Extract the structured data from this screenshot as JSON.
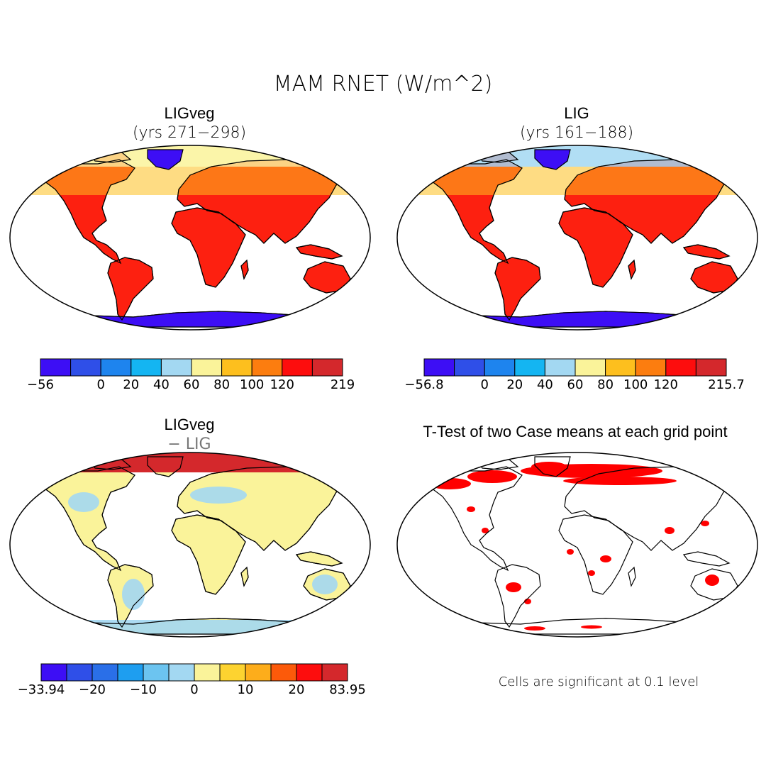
{
  "title": "MAM RNET (W/m^2)",
  "chart_data": [
    {
      "type": "heatmap",
      "title": "LIGveg",
      "subtitle": "(yrs 271−298)",
      "colorbar": {
        "colors": [
          "#3d0ef5",
          "#2f4fe8",
          "#1e84ee",
          "#14b5f2",
          "#a3d8f2",
          "#faf39a",
          "#fdbf1e",
          "#fc7d0f",
          "#fd0d0d",
          "#d4282c"
        ],
        "tick_labels": [
          {
            "label": "−56",
            "boundary": 0
          },
          {
            "label": "0",
            "boundary": 2
          },
          {
            "label": "20",
            "boundary": 3
          },
          {
            "label": "40",
            "boundary": 4
          },
          {
            "label": "60",
            "boundary": 5
          },
          {
            "label": "80",
            "boundary": 6
          },
          {
            "label": "100",
            "boundary": 7
          },
          {
            "label": "120",
            "boundary": 8
          },
          {
            "label": "219",
            "boundary": 10
          }
        ],
        "range": [
          -56,
          219
        ]
      }
    },
    {
      "type": "heatmap",
      "title": "LIG",
      "subtitle": "(yrs 161−188)",
      "colorbar": {
        "colors": [
          "#3d0ef5",
          "#2f4fe8",
          "#1e84ee",
          "#14b5f2",
          "#a3d8f2",
          "#faf39a",
          "#fdbf1e",
          "#fc7d0f",
          "#fd0d0d",
          "#d4282c"
        ],
        "tick_labels": [
          {
            "label": "−56.8",
            "boundary": 0
          },
          {
            "label": "0",
            "boundary": 2
          },
          {
            "label": "20",
            "boundary": 3
          },
          {
            "label": "40",
            "boundary": 4
          },
          {
            "label": "60",
            "boundary": 5
          },
          {
            "label": "80",
            "boundary": 6
          },
          {
            "label": "100",
            "boundary": 7
          },
          {
            "label": "120",
            "boundary": 8
          },
          {
            "label": "215.7",
            "boundary": 10
          }
        ],
        "range": [
          -56.8,
          215.7
        ]
      }
    },
    {
      "type": "heatmap",
      "title": "LIGveg",
      "subtitle": "− LIG",
      "colorbar": {
        "colors": [
          "#3d0ef5",
          "#2f4fe8",
          "#2a6fe8",
          "#1e9ef0",
          "#6cc4f0",
          "#a3d8f2",
          "#faf39a",
          "#fdd330",
          "#fdad1b",
          "#fc5a0a",
          "#fd0d0d",
          "#d4282c"
        ],
        "tick_labels": [
          {
            "label": "−33.94",
            "boundary": 0
          },
          {
            "label": "−20",
            "boundary": 2
          },
          {
            "label": "−10",
            "boundary": 4
          },
          {
            "label": "0",
            "boundary": 6
          },
          {
            "label": "10",
            "boundary": 8
          },
          {
            "label": "20",
            "boundary": 10
          },
          {
            "label": "83.95",
            "boundary": 12
          }
        ],
        "range": [
          -33.94,
          83.95
        ]
      }
    },
    {
      "type": "heatmap",
      "title": "T-Test of two Case means at each grid point",
      "note": "Cells are significant at 0.1 level",
      "significant_color": "#ff0000"
    }
  ]
}
